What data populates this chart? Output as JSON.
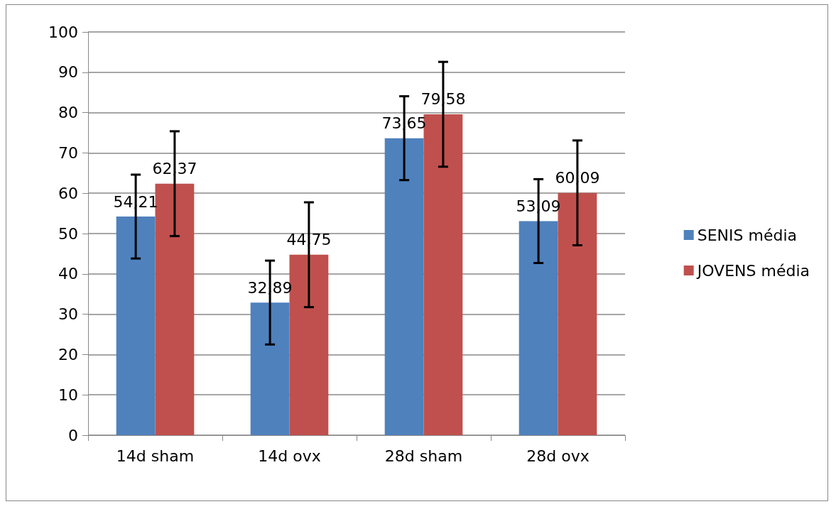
{
  "chart_data": {
    "type": "bar",
    "categories": [
      "14d sham",
      "14d ovx",
      "28d sham",
      "28d ovx"
    ],
    "series": [
      {
        "name": "SENIS média",
        "color": "#4f81bd",
        "values": [
          54.21,
          32.89,
          73.65,
          53.09
        ],
        "errors": [
          10.4,
          10.4,
          10.4,
          10.4
        ],
        "value_labels": [
          "54,21",
          "32,89",
          "73,65",
          "53,09"
        ]
      },
      {
        "name": "JOVENS média",
        "color": "#c0504d",
        "values": [
          62.37,
          44.75,
          79.58,
          60.09
        ],
        "errors": [
          13,
          13,
          13,
          13
        ],
        "value_labels": [
          "62,37",
          "44,75",
          "79,58",
          "60,09"
        ]
      }
    ],
    "ylim": [
      0,
      100
    ],
    "yticks": [
      0,
      10,
      20,
      30,
      40,
      50,
      60,
      70,
      80,
      90,
      100
    ],
    "grid": "y",
    "legend": "right"
  }
}
